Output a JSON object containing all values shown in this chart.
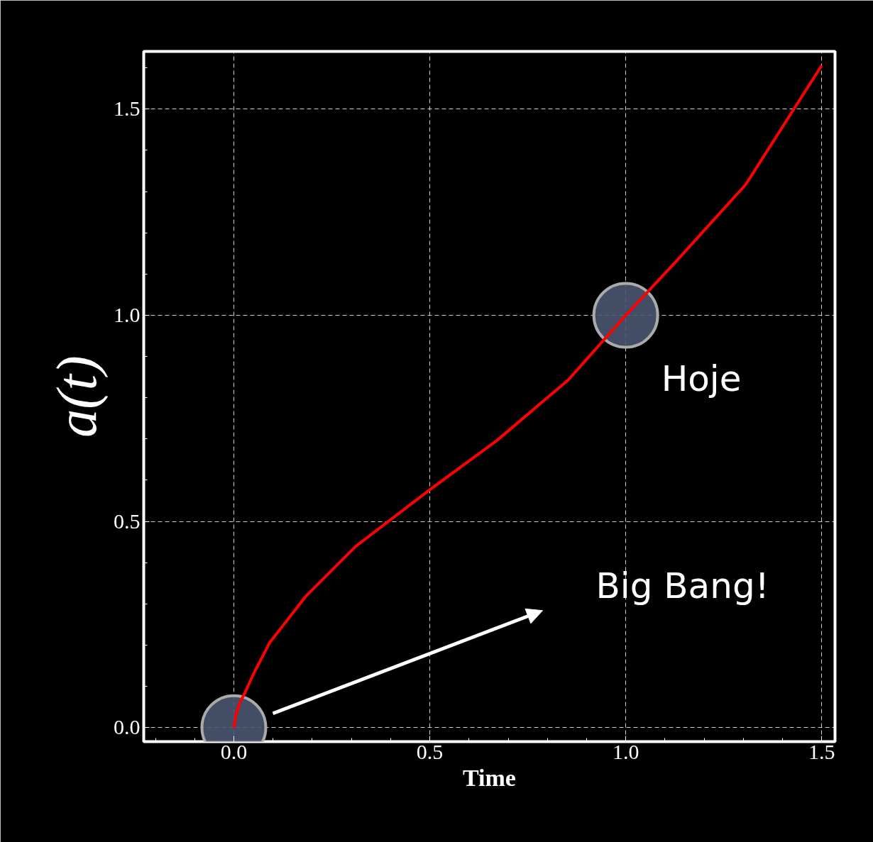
{
  "chart_data": {
    "type": "line",
    "xlabel": "Time",
    "ylabel": "a(t)",
    "x": [
      0.0,
      0.005,
      0.015,
      0.029,
      0.05,
      0.092,
      0.183,
      0.31,
      0.5,
      0.672,
      0.853,
      1.0,
      1.125,
      1.306,
      1.5
    ],
    "series": [
      {
        "color": "#ff0000",
        "values": [
          0.0,
          0.03,
          0.06,
          0.086,
          0.13,
          0.207,
          0.318,
          0.439,
          0.577,
          0.697,
          0.843,
          1.0,
          1.127,
          1.317,
          1.606
        ]
      },
      {
        "type": "scatter",
        "marker": "circle",
        "color": "#4a5570",
        "x": [
          0.0,
          1.0
        ],
        "values": [
          0.0,
          1.0
        ]
      }
    ],
    "xlim": [
      -0.23,
      1.534
    ],
    "ylim": [
      -0.034,
      1.64
    ],
    "xticks": [
      {
        "value": 0.0,
        "label": "0.0"
      },
      0.5,
      {
        "value": 1.0,
        "label": "1.0"
      },
      1.5
    ],
    "yticks": [
      {
        "value": 0.0,
        "label": "0.0"
      },
      0.5,
      {
        "value": 1.0,
        "label": "1.0"
      },
      1.5
    ],
    "grid": true,
    "line_style": "solid",
    "marker": "none",
    "annotations": [
      {
        "text": "Hoje",
        "x": 1.0,
        "y": 1.0
      },
      "Big Bang!"
    ]
  }
}
